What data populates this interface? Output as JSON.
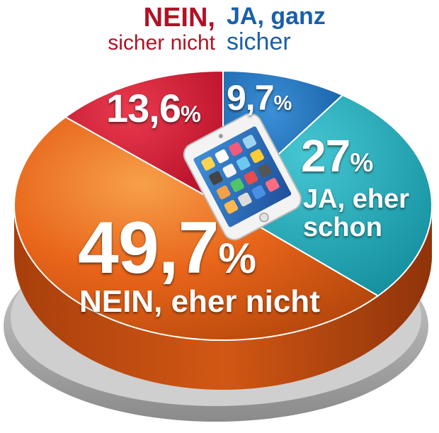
{
  "chart_data": {
    "type": "pie",
    "slices": [
      {
        "label": "NEIN, sicher nicht",
        "value": 13.6,
        "value_text": "13,6",
        "color": "#c8102e"
      },
      {
        "label": "JA, ganz sicher",
        "value": 9.7,
        "value_text": "9,7",
        "color": "#1a66b0"
      },
      {
        "label": "JA, eher schon",
        "value": 27,
        "value_text": "27",
        "color": "#1aa3b3"
      },
      {
        "label": "NEIN, eher nicht",
        "value": 49.7,
        "value_text": "49,7",
        "color": "#e8651a"
      }
    ],
    "unit": "%",
    "top_labels": {
      "nein_line1": "NEIN,",
      "nein_line2": "sicher nicht",
      "ja_line1": "JA, ganz",
      "ja_line2": "sicher"
    },
    "inner_labels": {
      "ja_eher_line1": "JA, eher",
      "ja_eher_line2": "schon",
      "nein_eher": "NEIN, eher nicht"
    },
    "colors": {
      "red_text": "#b01226",
      "blue_text": "#1a5fa8"
    }
  }
}
